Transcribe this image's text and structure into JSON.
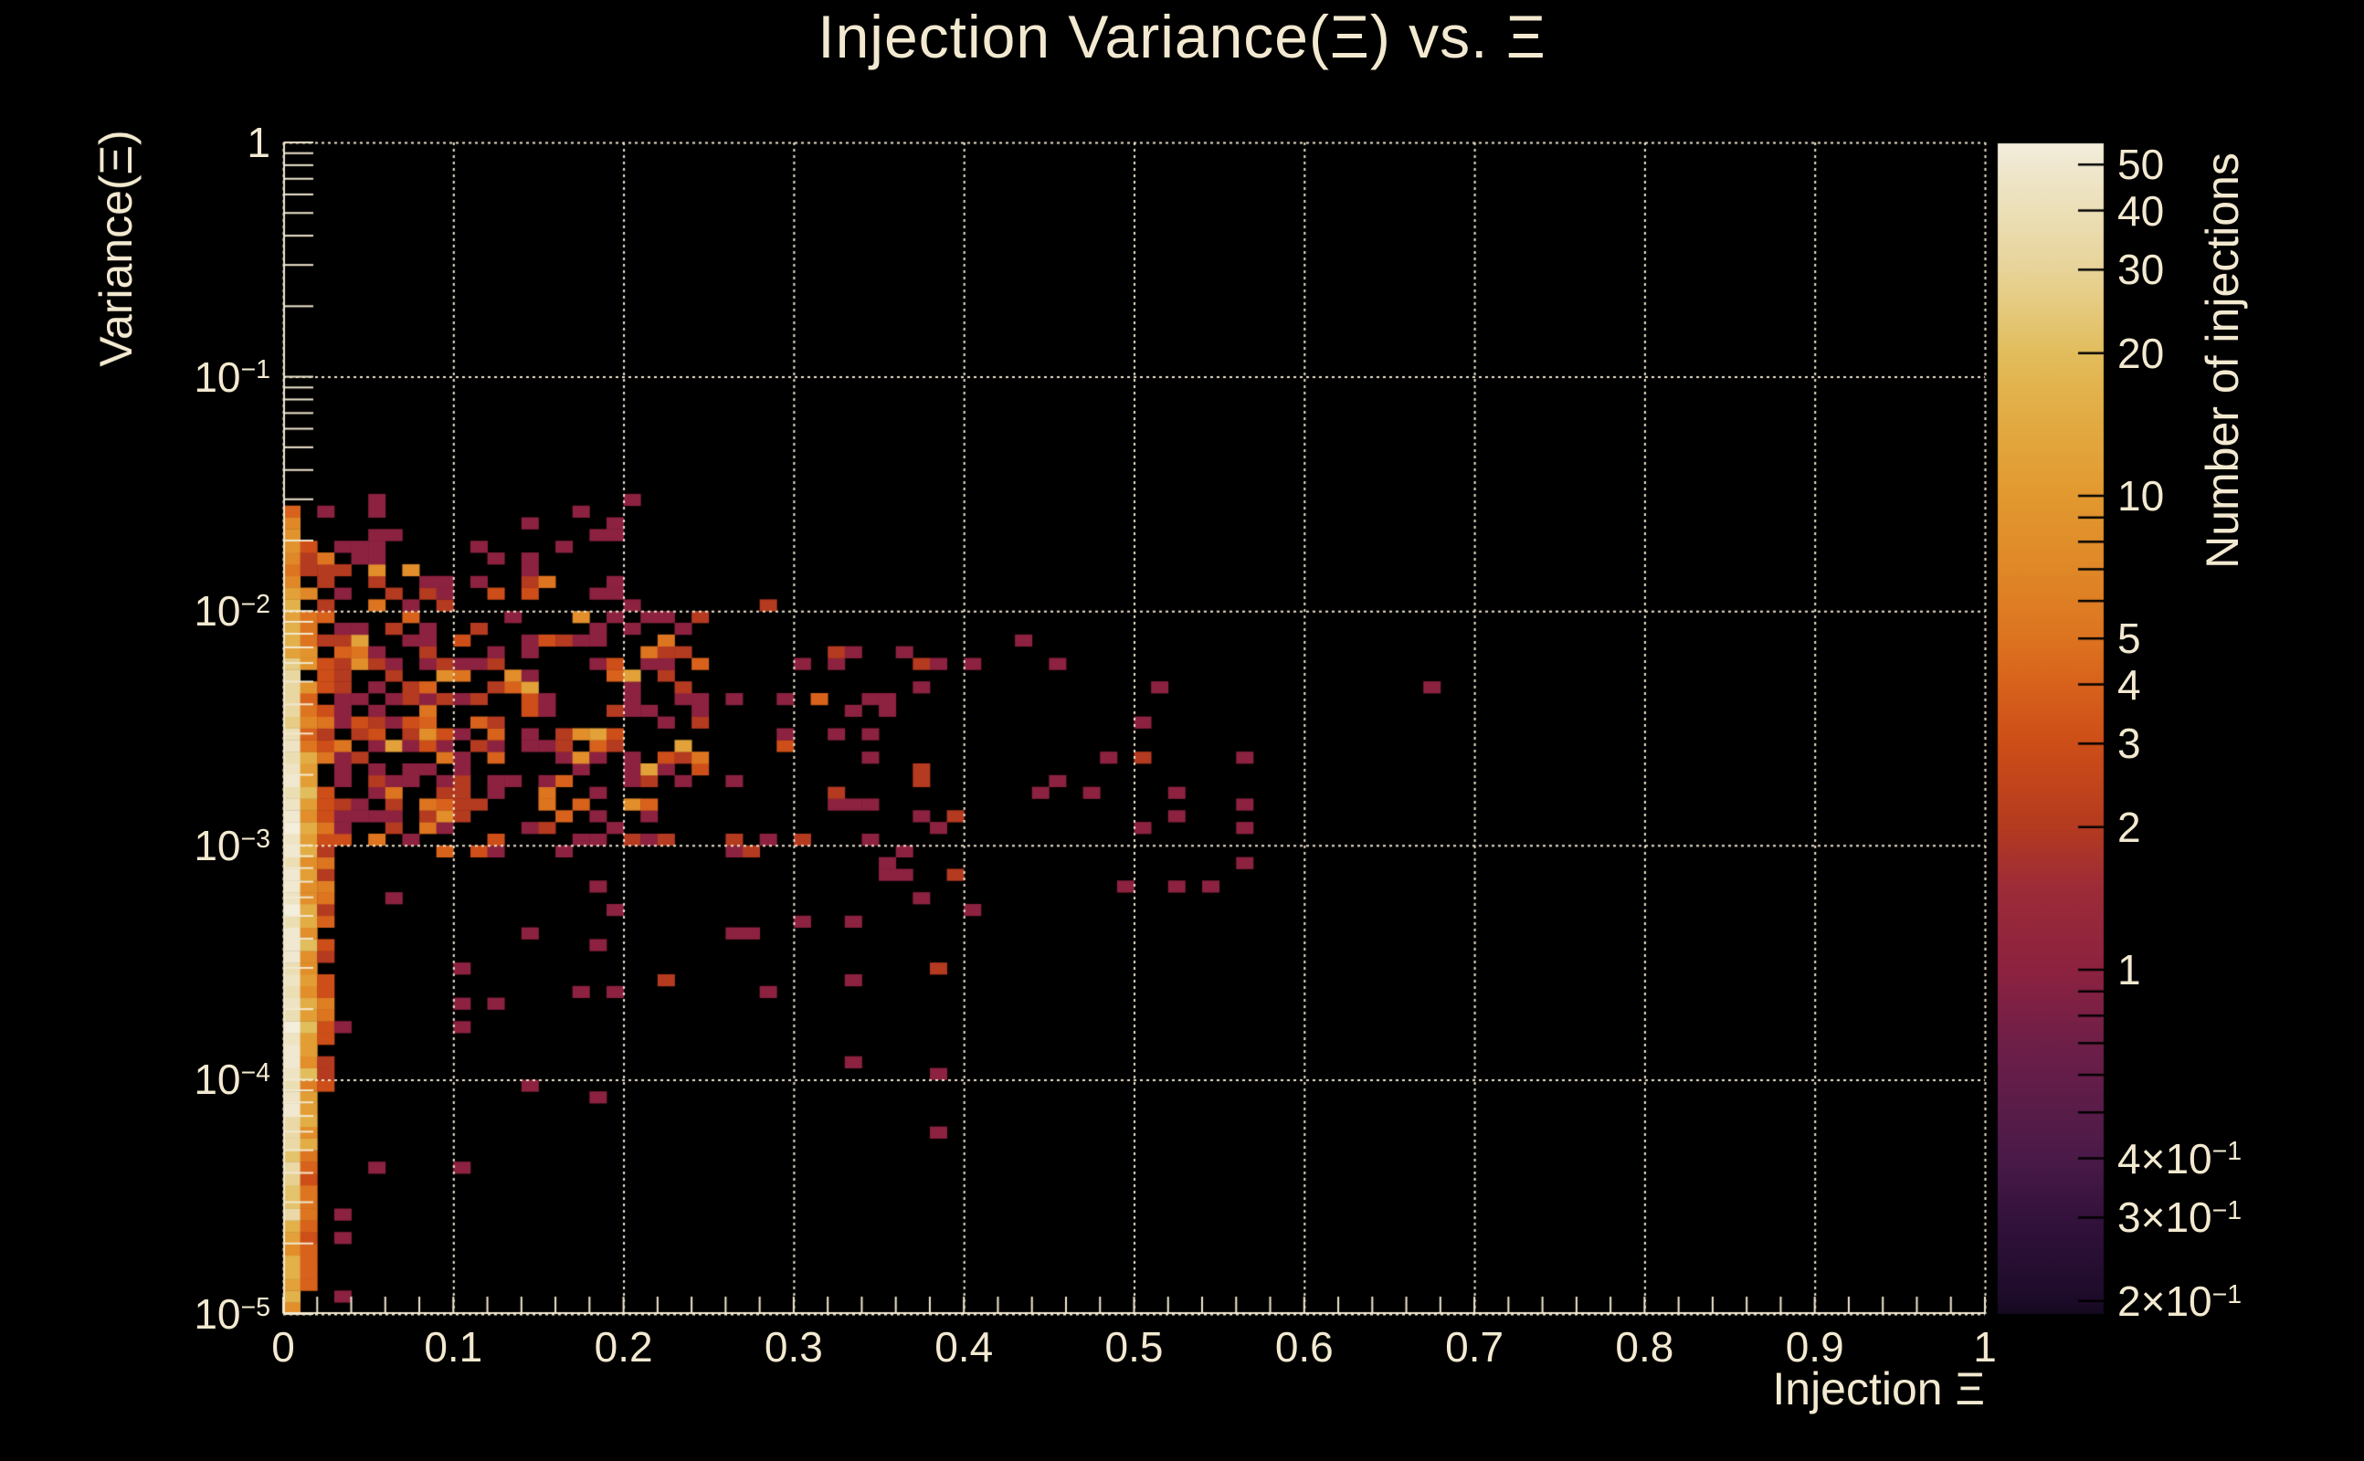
{
  "title": "Injection Variance(Ξ) vs. Ξ",
  "colors": {
    "background": "#000000",
    "text": "#f2e9d0",
    "axis": "#f2e9d0",
    "grid": "#f2e9d0",
    "colorbar_tick": "#000000"
  },
  "chart_data": {
    "type": "heatmap",
    "title": "Injection Variance(Ξ) vs. Ξ",
    "xlabel": "Injection Ξ",
    "ylabel": "Variance(Ξ)",
    "zlabel": "Number of injections",
    "x_range": [
      0,
      1
    ],
    "x_scale": "linear",
    "y_range": [
      1e-05,
      1
    ],
    "y_scale": "log",
    "z_range": [
      0.19,
      55
    ],
    "z_scale": "log",
    "grid": "dotted, at every 0.1 in x and every decade in y",
    "legend_position": "right colorbar",
    "bins": {
      "nx": 100,
      "ny": 100
    },
    "x_ticks": [
      {
        "v": 0.0,
        "t": "0"
      },
      {
        "v": 0.1,
        "t": "0.1"
      },
      {
        "v": 0.2,
        "t": "0.2"
      },
      {
        "v": 0.3,
        "t": "0.3"
      },
      {
        "v": 0.4,
        "t": "0.4"
      },
      {
        "v": 0.5,
        "t": "0.5"
      },
      {
        "v": 0.6,
        "t": "0.6"
      },
      {
        "v": 0.7,
        "t": "0.7"
      },
      {
        "v": 0.8,
        "t": "0.8"
      },
      {
        "v": 0.9,
        "t": "0.9"
      },
      {
        "v": 1.0,
        "t": "1"
      }
    ],
    "x_minor_step": 0.02,
    "y_ticks": [
      {
        "log": 0,
        "t": "1"
      },
      {
        "log": -1,
        "t": "10",
        "s": "−1"
      },
      {
        "log": -2,
        "t": "10",
        "s": "−2"
      },
      {
        "log": -3,
        "t": "10",
        "s": "−3"
      },
      {
        "log": -4,
        "t": "10",
        "s": "−4"
      },
      {
        "log": -5,
        "t": "10",
        "s": "−5"
      }
    ],
    "colorbar_ticks": [
      {
        "v": 50,
        "t": "50"
      },
      {
        "v": 40,
        "t": "40"
      },
      {
        "v": 30,
        "t": "30"
      },
      {
        "v": 20,
        "t": "20"
      },
      {
        "v": 10,
        "t": "10"
      },
      {
        "v": 5,
        "t": "5"
      },
      {
        "v": 4,
        "t": "4"
      },
      {
        "v": 3,
        "t": "3"
      },
      {
        "v": 2,
        "t": "2"
      },
      {
        "v": 1,
        "t": "1"
      },
      {
        "v": 0.4,
        "t": "4×10",
        "s": "−1"
      },
      {
        "v": 0.3,
        "t": "3×10",
        "s": "−1"
      },
      {
        "v": 0.2,
        "t": "2×10",
        "s": "−1"
      }
    ],
    "palette": [
      [
        0.0,
        "#140a1e"
      ],
      [
        0.009,
        "#1c0b28"
      ],
      [
        0.081,
        "#33123c"
      ],
      [
        0.132,
        "#4a1a48"
      ],
      [
        0.23,
        "#6e1f48"
      ],
      [
        0.293,
        "#8c2240"
      ],
      [
        0.365,
        "#9e2c38"
      ],
      [
        0.415,
        "#b43a20"
      ],
      [
        0.487,
        "#cd4e18"
      ],
      [
        0.538,
        "#d8621c"
      ],
      [
        0.578,
        "#dd7420"
      ],
      [
        0.637,
        "#e08828"
      ],
      [
        0.699,
        "#e2992f"
      ],
      [
        0.771,
        "#e2ad45"
      ],
      [
        0.821,
        "#e2bd5c"
      ],
      [
        0.893,
        "#e8d49a"
      ],
      [
        0.944,
        "#ece0b8"
      ],
      [
        0.983,
        "#f0e8d0"
      ],
      [
        1.0,
        "#f4eedd"
      ]
    ],
    "seed": 1337,
    "density_regions": [
      {
        "type": "profile",
        "x0": 0.0,
        "x1": 0.01,
        "bands": [
          [
            -5.0,
            -4.6,
            1.0,
            [
              [
                8,
                2
              ],
              [
                12,
                3
              ],
              [
                16,
                3
              ],
              [
                22,
                2
              ]
            ]
          ],
          [
            -4.6,
            -4.15,
            1.0,
            [
              [
                22,
                2
              ],
              [
                28,
                3
              ],
              [
                34,
                3
              ]
            ]
          ],
          [
            -4.15,
            -2.55,
            1.0,
            [
              [
                38,
                2
              ],
              [
                44,
                3
              ],
              [
                50,
                3
              ],
              [
                55,
                2
              ]
            ]
          ],
          [
            -2.55,
            -2.2,
            1.0,
            [
              [
                26,
                2
              ],
              [
                32,
                3
              ],
              [
                40,
                2
              ]
            ]
          ],
          [
            -2.2,
            -1.9,
            1.0,
            [
              [
                12,
                2
              ],
              [
                16,
                3
              ],
              [
                20,
                2
              ]
            ]
          ],
          [
            -1.9,
            -1.62,
            0.9,
            [
              [
                5,
                2
              ],
              [
                7,
                3
              ],
              [
                9,
                2
              ]
            ]
          ]
        ]
      },
      {
        "type": "profile",
        "x0": 0.01,
        "x1": 0.02,
        "bands": [
          [
            -4.95,
            -4.3,
            0.85,
            [
              [
                3,
                2
              ],
              [
                4,
                3
              ],
              [
                5,
                2
              ]
            ]
          ],
          [
            -4.3,
            -2.6,
            1.0,
            [
              [
                6,
                2
              ],
              [
                8,
                3
              ],
              [
                11,
                3
              ],
              [
                15,
                2
              ],
              [
                20,
                1
              ]
            ]
          ],
          [
            -2.6,
            -1.9,
            0.95,
            [
              [
                4,
                2
              ],
              [
                5,
                3
              ],
              [
                7,
                2
              ],
              [
                9,
                1
              ]
            ]
          ],
          [
            -1.9,
            -1.65,
            0.5,
            [
              [
                2,
                2
              ],
              [
                3,
                2
              ],
              [
                4,
                1
              ]
            ]
          ]
        ]
      },
      {
        "type": "uniform",
        "x0": 0.02,
        "x1": 0.03,
        "l0": -4.05,
        "l1": -1.75,
        "p0": 0.8,
        "p1": 0.8,
        "counts": [
          [
            2,
            3
          ],
          [
            3,
            3
          ],
          [
            4,
            2
          ],
          [
            5,
            2
          ],
          [
            6,
            1
          ]
        ]
      },
      {
        "type": "uniform",
        "x0": 0.03,
        "x1": 0.3,
        "l0": -3.05,
        "l1": -1.8,
        "p0": 0.68,
        "p1": 0.13,
        "counts": [
          [
            1,
            50
          ],
          [
            2,
            22
          ],
          [
            3,
            11
          ],
          [
            4,
            7
          ],
          [
            5,
            5
          ],
          [
            8,
            3
          ],
          [
            12,
            2
          ]
        ],
        "core": [
          -2.95,
          -2.05,
          0.55
        ]
      },
      {
        "type": "uniform",
        "x0": 0.03,
        "x1": 0.22,
        "l0": -1.8,
        "l1": -1.52,
        "p0": 0.22,
        "p1": 0.04,
        "counts": [
          [
            1,
            70
          ],
          [
            2,
            20
          ],
          [
            4,
            10
          ]
        ]
      },
      {
        "type": "uniform",
        "x0": 0.3,
        "x1": 0.46,
        "l0": -3.15,
        "l1": -2.05,
        "p0": 0.13,
        "p1": 0.07,
        "counts": [
          [
            1,
            78
          ],
          [
            2,
            16
          ],
          [
            4,
            6
          ]
        ]
      },
      {
        "type": "uniform",
        "x0": 0.46,
        "x1": 0.58,
        "l0": -3.2,
        "l1": -2.3,
        "p0": 0.07,
        "p1": 0.04,
        "counts": [
          [
            1,
            85
          ],
          [
            2,
            15
          ]
        ]
      },
      {
        "type": "uniform",
        "x0": 0.03,
        "x1": 0.42,
        "l0": -4.4,
        "l1": -3.1,
        "p0": 0.03,
        "p1": 0.015,
        "counts": [
          [
            1,
            85
          ],
          [
            2,
            15
          ]
        ]
      },
      {
        "type": "uniform",
        "x0": 0.01,
        "x1": 0.045,
        "l0": -5.0,
        "l1": -4.4,
        "p0": 0.15,
        "p1": 0.1,
        "counts": [
          [
            1,
            80
          ],
          [
            2,
            20
          ]
        ]
      }
    ],
    "outlier_cells": [
      [
        0.675,
        -2.33,
        1
      ],
      [
        0.52,
        -3.18,
        1
      ],
      [
        0.033,
        -4.92,
        1
      ],
      [
        0.3,
        -3.31,
        1
      ],
      [
        0.33,
        -3.31,
        1
      ],
      [
        0.37,
        -3.22,
        1
      ],
      [
        0.4,
        -3.27,
        1
      ],
      [
        0.33,
        -3.56,
        1
      ],
      [
        0.197,
        -3.26,
        1
      ],
      [
        0.005,
        -1.56,
        4
      ],
      [
        0.02,
        -1.57,
        1
      ],
      [
        0.055,
        -1.6,
        1
      ],
      [
        0.435,
        -2.12,
        1
      ],
      [
        0.5,
        -2.62,
        2
      ]
    ]
  }
}
